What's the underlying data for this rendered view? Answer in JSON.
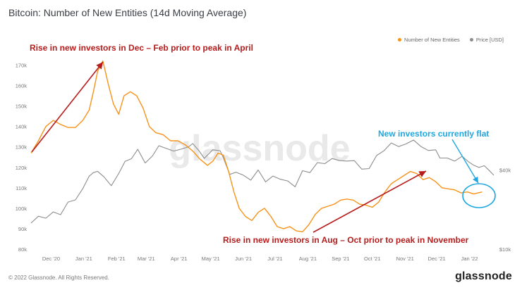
{
  "header": {
    "title": "Bitcoin: Number of New Entities (14d Moving Average)"
  },
  "legend": {
    "entities_label": "Number of New Entities",
    "price_label": "Price [USD]"
  },
  "watermark": "glassnode",
  "footer": {
    "copyright": "© 2022 Glassnode. All Rights Reserved.",
    "logo": "glassnode"
  },
  "annotations": {
    "rise_dec_feb": "Rise in new investors in Dec – Feb prior to peak in April",
    "rise_aug_oct": "Rise in new investors in Aug – Oct prior to peak in November",
    "flat_now": "New investors currently flat"
  },
  "colors": {
    "entities": "#f7931a",
    "price": "#8c8c8c",
    "annotation_red": "#b71c1c",
    "annotation_blue": "#1ea7e0"
  },
  "chart_data": {
    "type": "line",
    "title": "Bitcoin: Number of New Entities (14d Moving Average)",
    "x_range": [
      "2020-11-12",
      "2022-01-24"
    ],
    "x_ticks": [
      "Dec '20",
      "Jan '21",
      "Feb '21",
      "Mar '21",
      "Apr '21",
      "May '21",
      "Jun '21",
      "Jul '21",
      "Aug '21",
      "Sep '21",
      "Oct '21",
      "Nov '21",
      "Dec '21",
      "Jan '22"
    ],
    "y_left": {
      "ylim": [
        80000,
        175000
      ],
      "ticks": [
        "80k",
        "90k",
        "100k",
        "110k",
        "120k",
        "130k",
        "140k",
        "150k",
        "160k",
        "170k"
      ]
    },
    "y_right": {
      "scale": "log",
      "ylim": [
        10000,
        300000
      ],
      "ticks": [
        "$10k",
        "$40k"
      ]
    },
    "grid": false,
    "legend_position": "top-right",
    "series": [
      {
        "name": "Number of New Entities",
        "axis": "left",
        "points": [
          [
            "2020-11-12",
            127000
          ],
          [
            "2020-11-19",
            133000
          ],
          [
            "2020-11-26",
            140000
          ],
          [
            "2020-12-03",
            143000
          ],
          [
            "2020-12-10",
            141000
          ],
          [
            "2020-12-17",
            139500
          ],
          [
            "2020-12-24",
            139500
          ],
          [
            "2020-12-31",
            143000
          ],
          [
            "2021-01-06",
            148000
          ],
          [
            "2021-01-10",
            157000
          ],
          [
            "2021-01-14",
            167000
          ],
          [
            "2021-01-19",
            172000
          ],
          [
            "2021-01-24",
            161000
          ],
          [
            "2021-01-29",
            151000
          ],
          [
            "2021-02-03",
            146000
          ],
          [
            "2021-02-08",
            155000
          ],
          [
            "2021-02-14",
            157000
          ],
          [
            "2021-02-20",
            155000
          ],
          [
            "2021-02-26",
            149000
          ],
          [
            "2021-03-04",
            140000
          ],
          [
            "2021-03-10",
            137000
          ],
          [
            "2021-03-17",
            136000
          ],
          [
            "2021-03-24",
            133000
          ],
          [
            "2021-03-31",
            133000
          ],
          [
            "2021-04-07",
            131000
          ],
          [
            "2021-04-14",
            128000
          ],
          [
            "2021-04-21",
            124000
          ],
          [
            "2021-04-28",
            121000
          ],
          [
            "2021-05-03",
            123000
          ],
          [
            "2021-05-08",
            127000
          ],
          [
            "2021-05-13",
            126000
          ],
          [
            "2021-05-18",
            118000
          ],
          [
            "2021-05-23",
            108000
          ],
          [
            "2021-05-28",
            100000
          ],
          [
            "2021-06-03",
            96000
          ],
          [
            "2021-06-09",
            94000
          ],
          [
            "2021-06-15",
            98000
          ],
          [
            "2021-06-21",
            100000
          ],
          [
            "2021-06-27",
            96000
          ],
          [
            "2021-07-03",
            91000
          ],
          [
            "2021-07-09",
            90000
          ],
          [
            "2021-07-15",
            91000
          ],
          [
            "2021-07-21",
            89000
          ],
          [
            "2021-07-27",
            88500
          ],
          [
            "2021-08-02",
            92000
          ],
          [
            "2021-08-08",
            97000
          ],
          [
            "2021-08-14",
            100000
          ],
          [
            "2021-08-20",
            101000
          ],
          [
            "2021-08-26",
            102000
          ],
          [
            "2021-09-01",
            104000
          ],
          [
            "2021-09-07",
            104500
          ],
          [
            "2021-09-13",
            104000
          ],
          [
            "2021-09-19",
            102000
          ],
          [
            "2021-09-25",
            101500
          ],
          [
            "2021-10-01",
            100500
          ],
          [
            "2021-10-07",
            103000
          ],
          [
            "2021-10-13",
            108000
          ],
          [
            "2021-10-19",
            112000
          ],
          [
            "2021-10-25",
            114000
          ],
          [
            "2021-10-31",
            116000
          ],
          [
            "2021-11-06",
            118000
          ],
          [
            "2021-11-12",
            117000
          ],
          [
            "2021-11-18",
            114000
          ],
          [
            "2021-11-24",
            115000
          ],
          [
            "2021-11-30",
            113000
          ],
          [
            "2021-12-06",
            110000
          ],
          [
            "2021-12-12",
            109500
          ],
          [
            "2021-12-18",
            109000
          ],
          [
            "2021-12-24",
            107500
          ],
          [
            "2021-12-30",
            108000
          ],
          [
            "2022-01-05",
            107000
          ],
          [
            "2022-01-09",
            107500
          ],
          [
            "2022-01-13",
            108000
          ]
        ]
      },
      {
        "name": "Price [USD]",
        "axis": "right",
        "points": [
          [
            "2020-11-12",
            15800
          ],
          [
            "2020-11-19",
            17800
          ],
          [
            "2020-11-26",
            17200
          ],
          [
            "2020-12-03",
            19200
          ],
          [
            "2020-12-10",
            18300
          ],
          [
            "2020-12-17",
            22800
          ],
          [
            "2020-12-24",
            23700
          ],
          [
            "2020-12-31",
            28900
          ],
          [
            "2021-01-06",
            35900
          ],
          [
            "2021-01-10",
            38200
          ],
          [
            "2021-01-14",
            39100
          ],
          [
            "2021-01-20",
            35500
          ],
          [
            "2021-01-27",
            30400
          ],
          [
            "2021-02-03",
            37600
          ],
          [
            "2021-02-09",
            46500
          ],
          [
            "2021-02-15",
            48700
          ],
          [
            "2021-02-21",
            57500
          ],
          [
            "2021-02-28",
            45200
          ],
          [
            "2021-03-07",
            51200
          ],
          [
            "2021-03-13",
            61200
          ],
          [
            "2021-03-20",
            58300
          ],
          [
            "2021-03-27",
            55700
          ],
          [
            "2021-04-03",
            57600
          ],
          [
            "2021-04-10",
            60000
          ],
          [
            "2021-04-14",
            63500
          ],
          [
            "2021-04-20",
            56000
          ],
          [
            "2021-04-25",
            49000
          ],
          [
            "2021-05-03",
            57000
          ],
          [
            "2021-05-10",
            56000
          ],
          [
            "2021-05-13",
            49500
          ],
          [
            "2021-05-19",
            37000
          ],
          [
            "2021-05-25",
            38500
          ],
          [
            "2021-06-01",
            36500
          ],
          [
            "2021-06-08",
            33500
          ],
          [
            "2021-06-15",
            40000
          ],
          [
            "2021-06-22",
            32500
          ],
          [
            "2021-06-29",
            36000
          ],
          [
            "2021-07-06",
            34000
          ],
          [
            "2021-07-13",
            33000
          ],
          [
            "2021-07-20",
            29800
          ],
          [
            "2021-07-27",
            39500
          ],
          [
            "2021-08-03",
            38200
          ],
          [
            "2021-08-10",
            45500
          ],
          [
            "2021-08-17",
            44700
          ],
          [
            "2021-08-24",
            48900
          ],
          [
            "2021-08-31",
            47100
          ],
          [
            "2021-09-07",
            46800
          ],
          [
            "2021-09-14",
            47100
          ],
          [
            "2021-09-21",
            40600
          ],
          [
            "2021-09-28",
            41000
          ],
          [
            "2021-10-05",
            51500
          ],
          [
            "2021-10-12",
            56000
          ],
          [
            "2021-10-19",
            64200
          ],
          [
            "2021-10-26",
            60300
          ],
          [
            "2021-11-02",
            63200
          ],
          [
            "2021-11-09",
            67600
          ],
          [
            "2021-11-16",
            60400
          ],
          [
            "2021-11-23",
            56300
          ],
          [
            "2021-11-30",
            57000
          ],
          [
            "2021-12-04",
            49300
          ],
          [
            "2021-12-11",
            49300
          ],
          [
            "2021-12-18",
            46700
          ],
          [
            "2021-12-25",
            50800
          ],
          [
            "2021-12-31",
            46200
          ],
          [
            "2022-01-05",
            43500
          ],
          [
            "2022-01-10",
            41800
          ],
          [
            "2022-01-15",
            43100
          ],
          [
            "2022-01-21",
            38700
          ],
          [
            "2022-01-24",
            36500
          ]
        ]
      }
    ]
  }
}
